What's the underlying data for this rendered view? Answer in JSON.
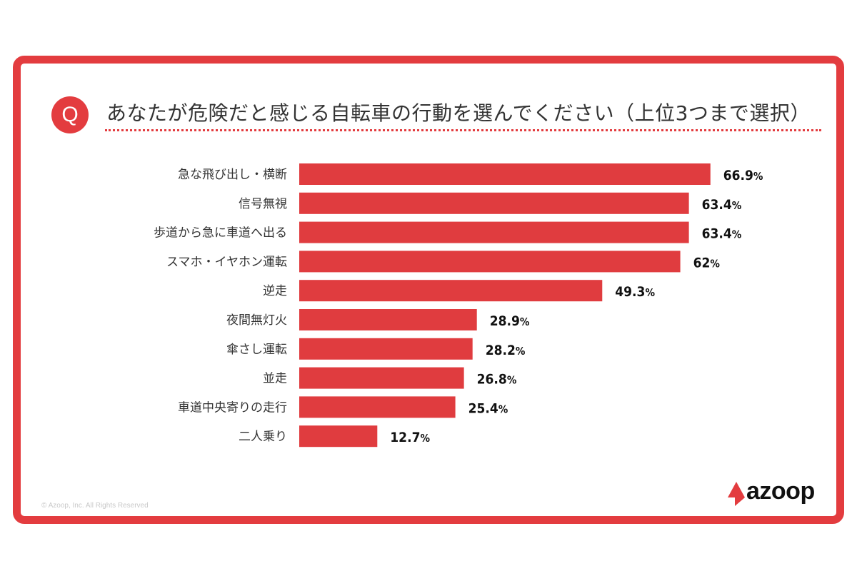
{
  "question_marker": "Q",
  "title": "あなたが危険だと感じる自転車の行動を選んでください（上位3つまで選択）",
  "copyright": "© Azoop, Inc. All Rights Reserved",
  "logo_text": "azoop",
  "colors": {
    "accent": "#e33c3f",
    "bar": "#e03c3f",
    "text": "#333333"
  },
  "chart_data": {
    "type": "bar",
    "orientation": "horizontal",
    "title": "あなたが危険だと感じる自転車の行動を選んでください（上位3つまで選択）",
    "xlabel": "",
    "ylabel": "",
    "grid": false,
    "categories": [
      "急な飛び出し・横断",
      "信号無視",
      "歩道から急に車道へ出る",
      "スマホ・イヤホン運転",
      "逆走",
      "夜間無灯火",
      "傘さし運転",
      "並走",
      "車道中央寄りの走行",
      "二人乗り"
    ],
    "values": [
      66.9,
      63.4,
      63.4,
      62,
      49.3,
      28.9,
      28.2,
      26.8,
      25.4,
      12.7
    ],
    "value_labels": [
      "66.9",
      "63.4",
      "63.4",
      "62",
      "49.3",
      "28.9",
      "28.2",
      "26.8",
      "25.4",
      "12.7"
    ],
    "unit": "%",
    "xlim": [
      0,
      100
    ]
  }
}
